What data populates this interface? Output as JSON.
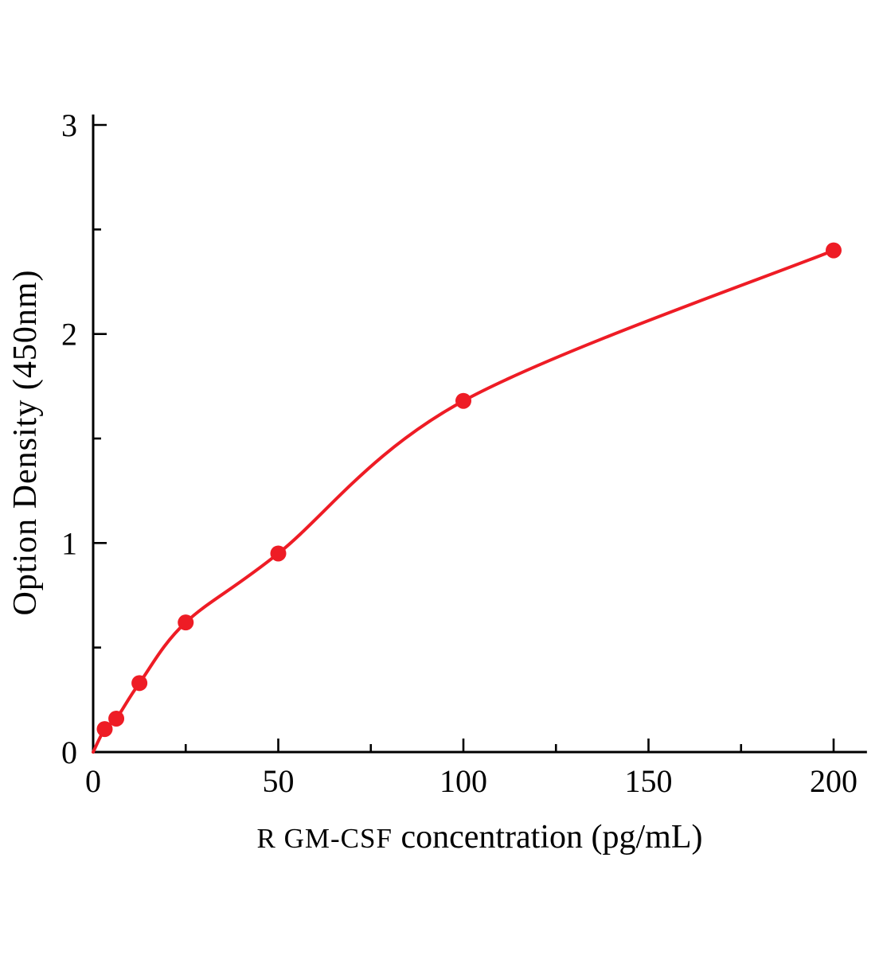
{
  "chart_data": {
    "type": "scatter",
    "title": "",
    "xlabel": "R GM-CSF concentration (pg/mL)",
    "xlabel_parts": {
      "prefix": "R GM-CSF",
      "rest": "concentration (pg/mL)"
    },
    "ylabel": "Option Density (450nm)",
    "x": [
      3.12,
      6.25,
      12.5,
      25,
      50,
      100,
      200
    ],
    "y": [
      0.11,
      0.16,
      0.33,
      0.62,
      0.95,
      1.68,
      2.4
    ],
    "curve_start": {
      "x": 0,
      "y": 0.0
    },
    "xlim": [
      0,
      209
    ],
    "ylim": [
      0,
      3.05
    ],
    "xticks": [
      0,
      50,
      100,
      150,
      200
    ],
    "yticks": [
      0,
      1,
      2,
      3
    ],
    "x_minor_step": 25,
    "y_minor_step": 0.5,
    "grid": false,
    "legend": "none",
    "accent_color": "#ee1c25",
    "axis_color": "#000000",
    "marker_radius": 10
  }
}
